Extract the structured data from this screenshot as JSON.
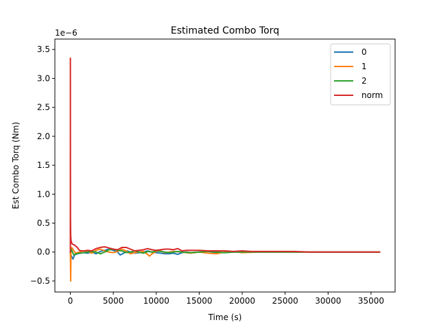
{
  "chart_data": {
    "type": "line",
    "title": "Estimated Combo Torq",
    "xlabel": "Time (s)",
    "ylabel": "Est Combo Torq (Nm)",
    "y_offset_label": "1e−6",
    "y_scale": 1e-06,
    "xlim": [
      -1800,
      37800
    ],
    "ylim": [
      -0.69,
      3.68
    ],
    "xticks": [
      0,
      5000,
      10000,
      15000,
      20000,
      25000,
      30000,
      35000
    ],
    "xtick_labels": [
      "0",
      "5000",
      "10000",
      "15000",
      "20000",
      "25000",
      "30000",
      "35000"
    ],
    "yticks": [
      -0.5,
      0.0,
      0.5,
      1.0,
      1.5,
      2.0,
      2.5,
      3.0,
      3.5
    ],
    "ytick_labels": [
      "−0.5",
      "0.0",
      "0.5",
      "1.0",
      "1.5",
      "2.0",
      "2.5",
      "3.0",
      "3.5"
    ],
    "grid": false,
    "legend_position": "upper right",
    "series": [
      {
        "name": "0",
        "color": "#1f77b4",
        "x": [
          0,
          100,
          300,
          500,
          800,
          1200,
          1600,
          2000,
          2500,
          3000,
          3500,
          4000,
          4500,
          5000,
          5500,
          5800,
          6200,
          6600,
          7000,
          7500,
          8000,
          8500,
          9000,
          9500,
          10000,
          10500,
          11000,
          11500,
          12000,
          12500,
          13000,
          13500,
          14000,
          15000,
          16000,
          17000,
          18000,
          19000,
          20000,
          22000,
          24000,
          26000,
          28000,
          30000,
          32000,
          34000,
          36000
        ],
        "y": [
          0.0,
          -0.06,
          -0.12,
          -0.05,
          -0.03,
          -0.02,
          -0.01,
          -0.02,
          0.0,
          -0.03,
          0.01,
          0.03,
          0.05,
          0.03,
          0.0,
          -0.05,
          -0.02,
          0.02,
          0.0,
          -0.02,
          -0.01,
          0.0,
          0.02,
          0.0,
          -0.01,
          -0.02,
          -0.03,
          -0.03,
          -0.02,
          -0.04,
          -0.01,
          0.0,
          -0.01,
          0.0,
          0.01,
          -0.01,
          -0.01,
          0.0,
          0.0,
          0.0,
          0.0,
          0.0,
          0.0,
          0.0,
          0.0,
          0.0,
          0.0
        ]
      },
      {
        "name": "1",
        "color": "#ff7f0e",
        "x": [
          0,
          40,
          80,
          150,
          300,
          600,
          1000,
          1500,
          2000,
          2500,
          3000,
          3500,
          4000,
          4500,
          5000,
          5500,
          6000,
          6500,
          7000,
          7500,
          8000,
          8500,
          9000,
          9200,
          9500,
          10000,
          10500,
          11000,
          11500,
          12000,
          13000,
          14000,
          15000,
          16000,
          17000,
          18000,
          19000,
          20000,
          22000,
          24000,
          26000,
          28000,
          30000,
          32000,
          34000,
          36000
        ],
        "y": [
          0.0,
          -0.5,
          0.05,
          0.08,
          0.05,
          -0.02,
          0.0,
          0.02,
          0.01,
          -0.02,
          0.03,
          0.05,
          0.02,
          0.0,
          -0.01,
          0.01,
          0.05,
          0.02,
          -0.03,
          -0.01,
          0.0,
          0.01,
          -0.04,
          -0.07,
          -0.03,
          0.01,
          0.02,
          -0.01,
          0.0,
          0.01,
          0.0,
          -0.02,
          0.0,
          -0.02,
          -0.03,
          0.0,
          0.01,
          -0.01,
          0.0,
          0.0,
          0.0,
          0.0,
          0.0,
          0.0,
          0.0,
          0.0
        ]
      },
      {
        "name": "2",
        "color": "#2ca02c",
        "x": [
          0,
          100,
          200,
          400,
          700,
          1000,
          1500,
          2000,
          2500,
          3000,
          3500,
          4000,
          4500,
          5000,
          5500,
          6000,
          6500,
          7000,
          7500,
          8000,
          8500,
          9000,
          9500,
          10000,
          10500,
          11000,
          11500,
          12000,
          12500,
          13000,
          14000,
          15000,
          16000,
          17000,
          18000,
          19000,
          20000,
          22000,
          24000,
          26000,
          28000,
          30000,
          32000,
          34000,
          36000
        ],
        "y": [
          0.0,
          0.05,
          0.02,
          -0.05,
          -0.03,
          -0.02,
          -0.01,
          0.0,
          0.01,
          0.0,
          -0.03,
          0.0,
          0.04,
          0.05,
          0.03,
          0.02,
          -0.01,
          0.0,
          0.02,
          0.0,
          -0.02,
          0.01,
          0.0,
          0.02,
          0.01,
          0.0,
          -0.01,
          0.0,
          0.01,
          0.0,
          -0.01,
          0.0,
          0.01,
          0.0,
          -0.01,
          0.0,
          0.0,
          0.0,
          0.0,
          0.0,
          0.0,
          0.0,
          0.0,
          0.0,
          0.0
        ]
      },
      {
        "name": "norm",
        "color": "#d62728",
        "x": [
          0,
          5,
          10,
          20,
          40,
          80,
          200,
          500,
          800,
          1000,
          1200,
          1600,
          2000,
          2500,
          3000,
          3500,
          4000,
          4500,
          5000,
          5500,
          6000,
          6500,
          7000,
          7500,
          8000,
          8500,
          9000,
          9500,
          10000,
          10500,
          11000,
          11500,
          12000,
          12500,
          13000,
          13500,
          14000,
          15000,
          16000,
          17000,
          18000,
          19000,
          20000,
          21000,
          22000,
          24000,
          26000,
          28000,
          30000,
          32000,
          34000,
          36000
        ],
        "y": [
          0.0,
          3.35,
          2.0,
          0.6,
          0.3,
          0.2,
          0.14,
          0.12,
          0.08,
          0.04,
          0.02,
          0.02,
          0.03,
          0.02,
          0.06,
          0.08,
          0.09,
          0.07,
          0.05,
          0.04,
          0.08,
          0.08,
          0.05,
          0.02,
          0.03,
          0.04,
          0.06,
          0.04,
          0.03,
          0.04,
          0.05,
          0.05,
          0.04,
          0.06,
          0.02,
          0.03,
          0.03,
          0.03,
          0.02,
          0.02,
          0.02,
          0.01,
          0.02,
          0.01,
          0.01,
          0.01,
          0.01,
          0.0,
          0.0,
          0.0,
          0.0,
          0.0
        ]
      }
    ]
  }
}
